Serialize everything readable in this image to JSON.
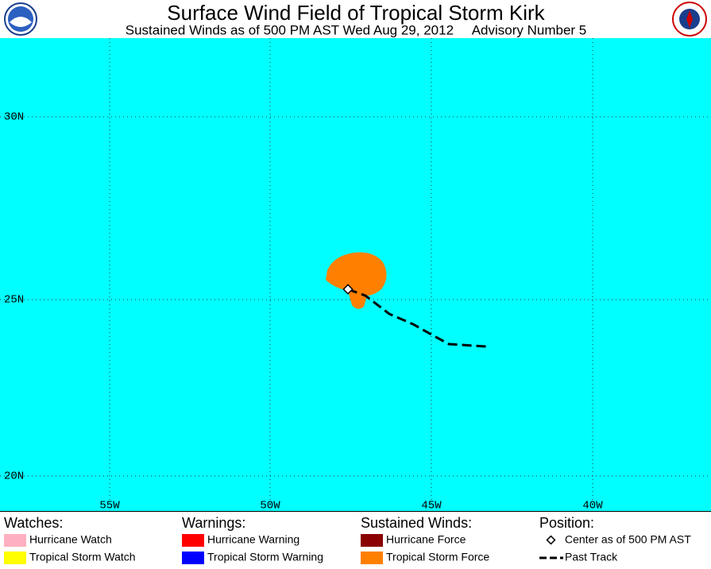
{
  "header": {
    "title": "Surface Wind Field of Tropical Storm Kirk",
    "subtitle": "Sustained Winds as of 500 PM AST Wed Aug 29, 2012     Advisory Number 5"
  },
  "map": {
    "lat_labels": [
      "30N",
      "25N",
      "20N"
    ],
    "lon_labels": [
      "55W",
      "50W",
      "45W",
      "40W"
    ]
  },
  "legend": {
    "columns": [
      {
        "heading": "Watches:",
        "items": [
          {
            "label": "Hurricane Watch",
            "color": "#ffb0c0"
          },
          {
            "label": "Tropical Storm Watch",
            "color": "#ffff00"
          }
        ]
      },
      {
        "heading": "Warnings:",
        "items": [
          {
            "label": "Hurricane Warning",
            "color": "#ff0000"
          },
          {
            "label": "Tropical Storm Warning",
            "color": "#0000ff"
          }
        ]
      },
      {
        "heading": "Sustained Winds:",
        "items": [
          {
            "label": "Hurricane Force",
            "color": "#8b0000"
          },
          {
            "label": "Tropical Storm Force",
            "color": "#ff8000"
          }
        ]
      },
      {
        "heading": "Position:",
        "items": [
          {
            "label": "Center as of 500 PM AST"
          },
          {
            "label": "Past Track"
          }
        ]
      }
    ]
  }
}
